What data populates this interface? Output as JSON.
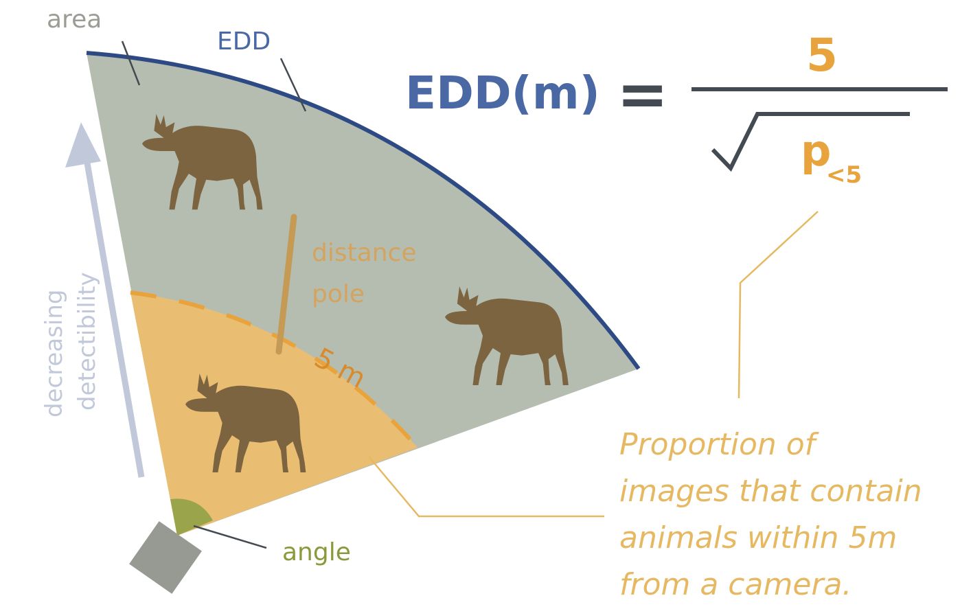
{
  "labels": {
    "area": "area",
    "edd": "EDD",
    "distance_line1": "distance",
    "distance_line2": "pole",
    "five_m": "5 m",
    "angle": "angle",
    "detect_line1": "decreasing",
    "detect_line2": "detectibility"
  },
  "formula": {
    "lhs": "EDD(m)",
    "equals": "=",
    "numerator": "5",
    "denominator": "p",
    "subscript": "<5"
  },
  "description": {
    "line1": "Proportion of",
    "line2": "images that contain",
    "line3": "animals within 5m",
    "line4": "from a camera."
  },
  "colors": {
    "outer_zone": "#b5bdb1",
    "inner_zone": "#e9bd72",
    "edd_arc": "#2d4a85",
    "formula_blue": "#4a69a4",
    "orange": "#e8a33d",
    "orange_text": "#e6b861",
    "pole": "#c49a55",
    "moose": "#7d6440",
    "angle": "#9aa44a",
    "camera": "#969a92",
    "grey_text": "#9a9d93",
    "arrow": "#c0c8d9",
    "dark": "#444a52"
  },
  "icons": [
    "moose-icon",
    "camera-icon",
    "sqrt-icon"
  ]
}
